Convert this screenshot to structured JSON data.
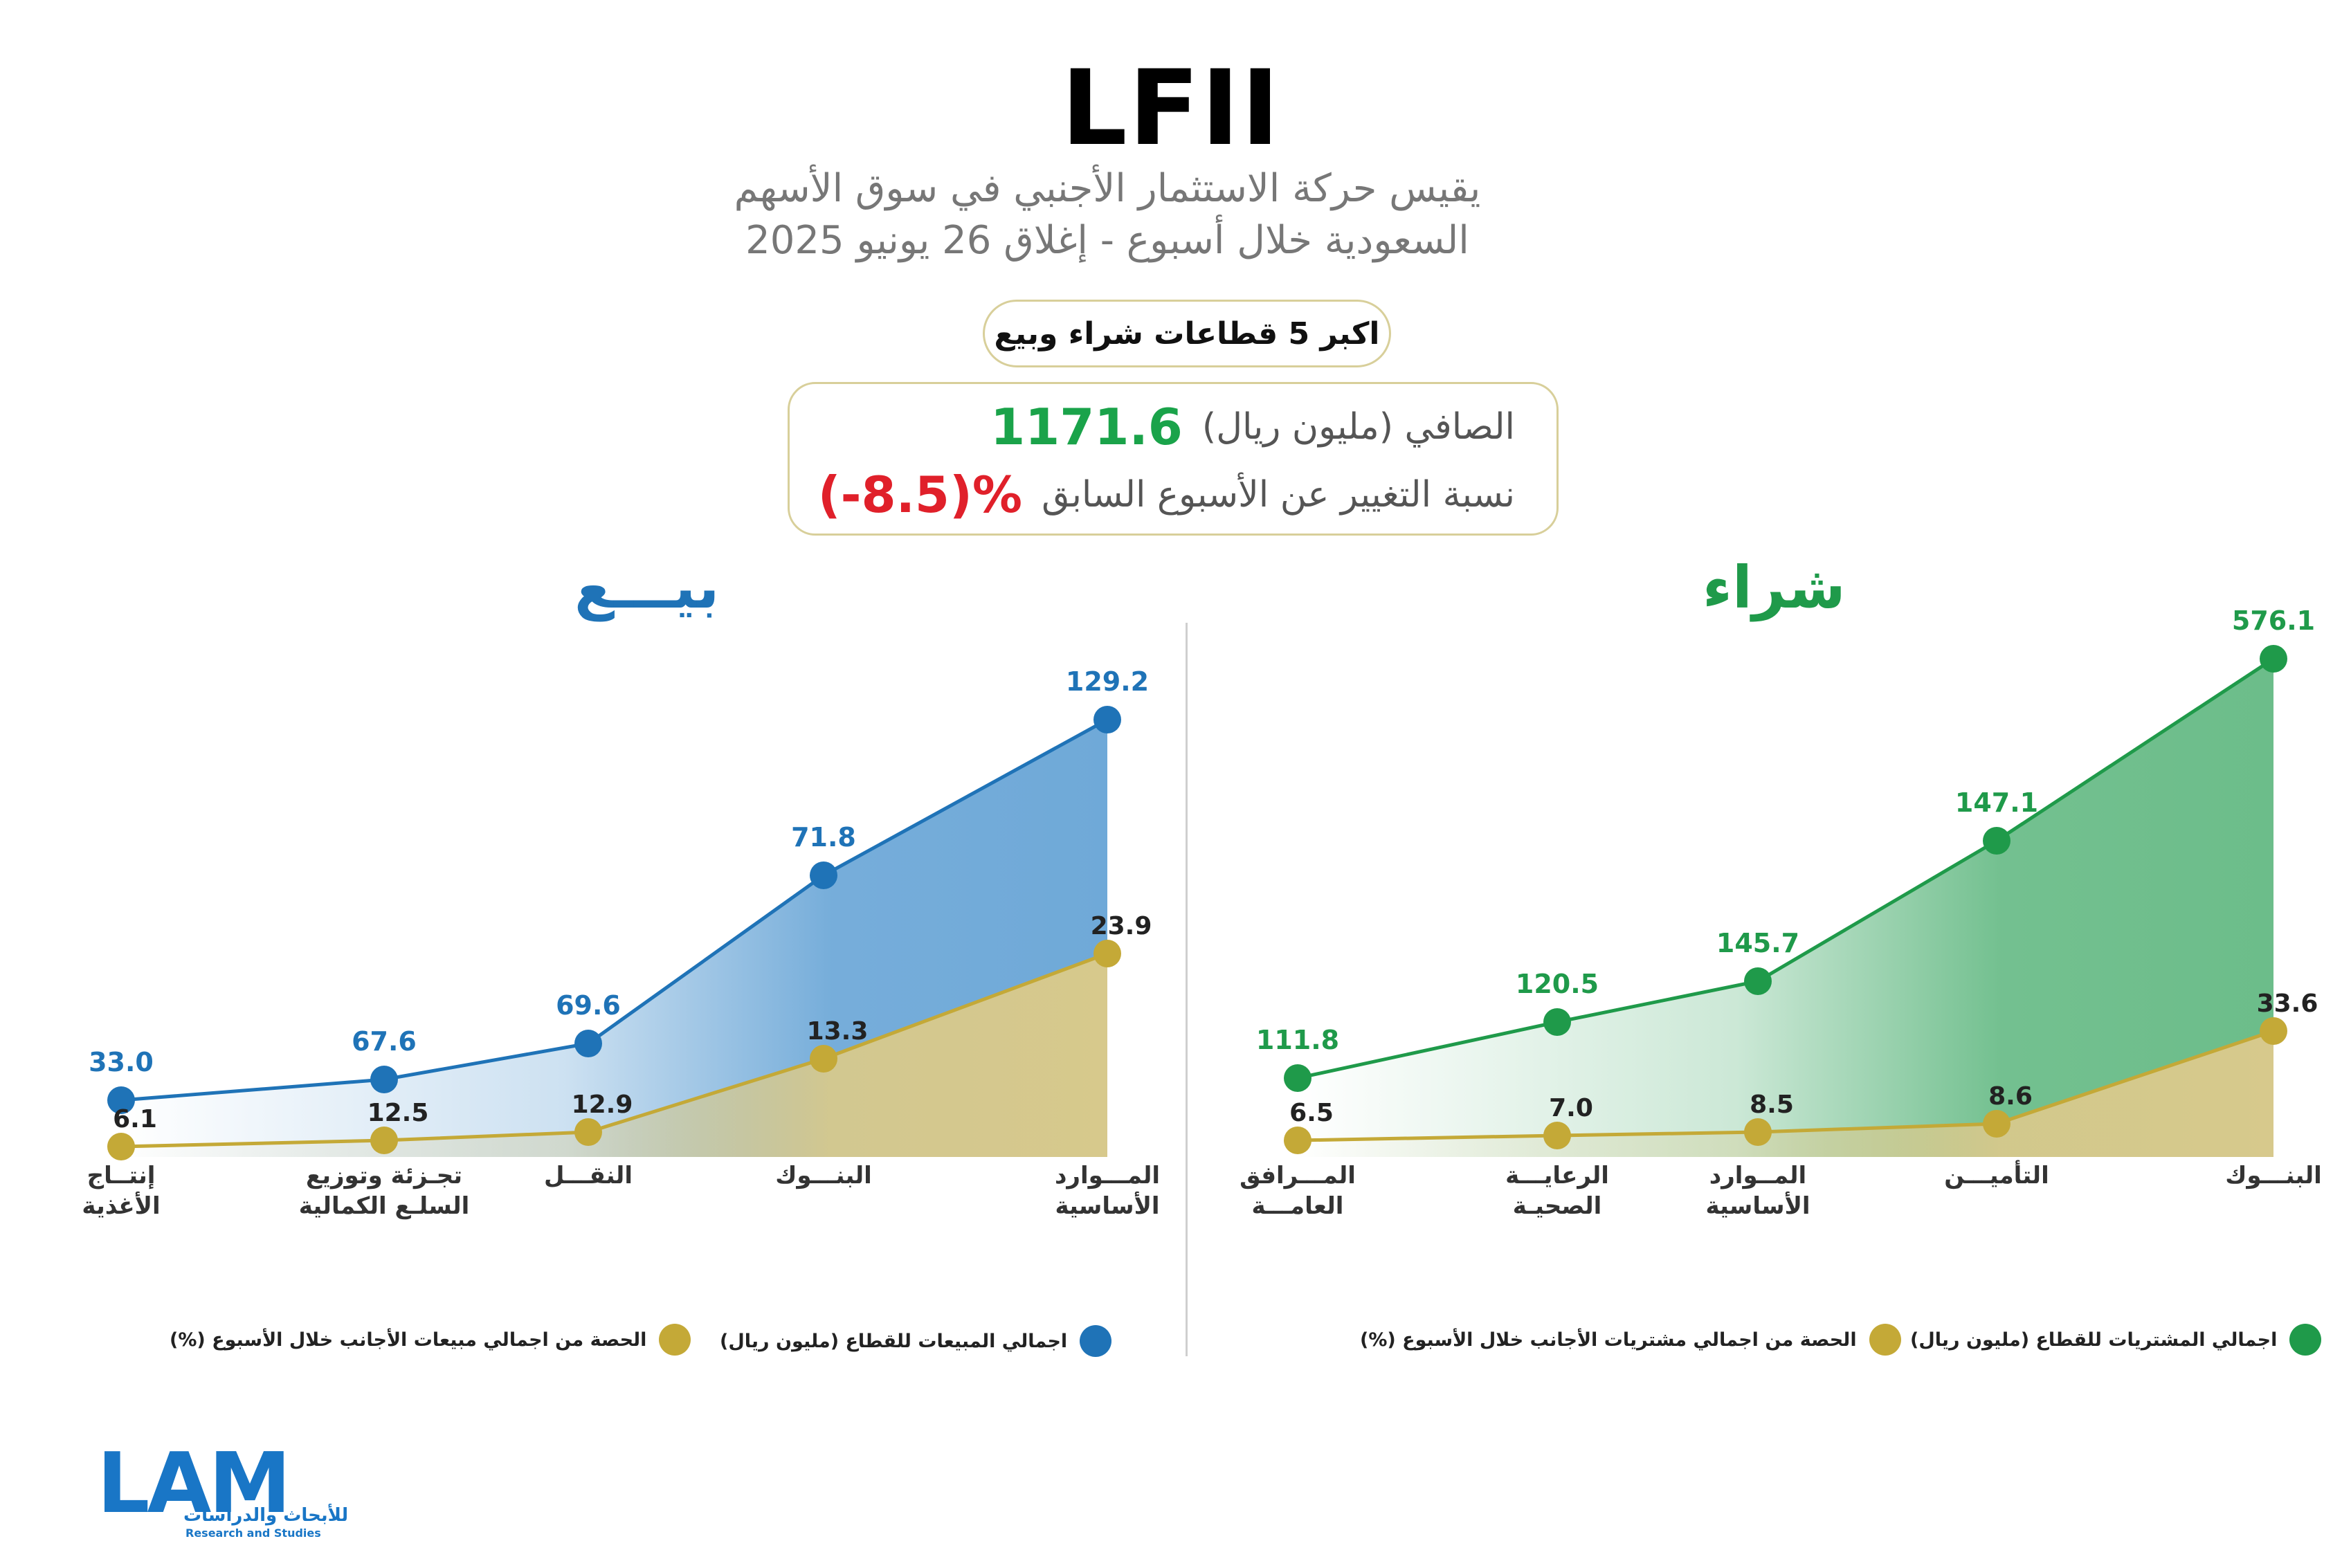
{
  "header": {
    "title": "LFII",
    "subtitle_line1": "يقيس حركة الاستثمار الأجنبي في سوق الأسهم",
    "subtitle_line2": "السعودية خلال أسبوع - إغلاق 26 يونيو 2025",
    "pill": "اكبر 5 قطاعات شراء وبيع"
  },
  "net": {
    "label": "الصافي (مليون ريال)",
    "value": "1171.6",
    "change_label": "نسبة التغيير عن الأسبوع السابق",
    "change_value": "(-8.5)%"
  },
  "colors": {
    "sell": "#1f73b7",
    "buy": "#1f9a4a",
    "share": "#c4a937",
    "net_positive": "#1aa34a",
    "change_negative": "#e0202a"
  },
  "chart_data": [
    {
      "panel": "sell",
      "title": "بيـــع",
      "type": "area",
      "categories": [
        [
          "إنتــاج",
          "الأغذية"
        ],
        [
          "تجـزئة وتوزيع",
          "السلـع الكمالية"
        ],
        [
          "النقـــل"
        ],
        [
          "البنـــوك"
        ],
        [
          "المـــوارد",
          "الأساسية"
        ]
      ],
      "series": [
        {
          "name": "اجمالي المبيعات للقطاع (مليون ريال)",
          "values": [
            33.0,
            67.6,
            69.6,
            71.8,
            129.2
          ],
          "labels": [
            "33.0",
            "67.6",
            "69.6",
            "71.8",
            "129.2"
          ]
        },
        {
          "name": "الحصة من اجمالي مبيعات الأجانب خلال الأسبوع (%)",
          "values": [
            6.1,
            12.5,
            12.9,
            13.3,
            23.9
          ],
          "labels": [
            "6.1",
            "12.5",
            "12.9",
            "13.3",
            "23.9"
          ]
        }
      ]
    },
    {
      "panel": "buy",
      "title": "شراء",
      "type": "area",
      "categories": [
        [
          "المـــرافق",
          "العامـــة"
        ],
        [
          "الرعايـــة",
          "الصحيـة"
        ],
        [
          "المــوارد",
          "الأساسية"
        ],
        [
          "التأميـــن"
        ],
        [
          "البنـــوك"
        ]
      ],
      "series": [
        {
          "name": "اجمالي المشتريات للقطاع (مليون ريال)",
          "values": [
            111.8,
            120.5,
            145.7,
            147.1,
            576.1
          ],
          "labels": [
            "111.8",
            "120.5",
            "145.7",
            "147.1",
            "576.1"
          ]
        },
        {
          "name": "الحصة من اجمالي مشتريات الأجانب خلال الأسبوع (%)",
          "values": [
            6.5,
            7.0,
            8.5,
            8.6,
            33.6
          ],
          "labels": [
            "6.5",
            "7.0",
            "8.5",
            "8.6",
            "33.6"
          ]
        }
      ]
    }
  ],
  "logo": {
    "mark": "LAM",
    "arabic": "للأبحاث والدراسات",
    "english": "Research and Studies"
  }
}
